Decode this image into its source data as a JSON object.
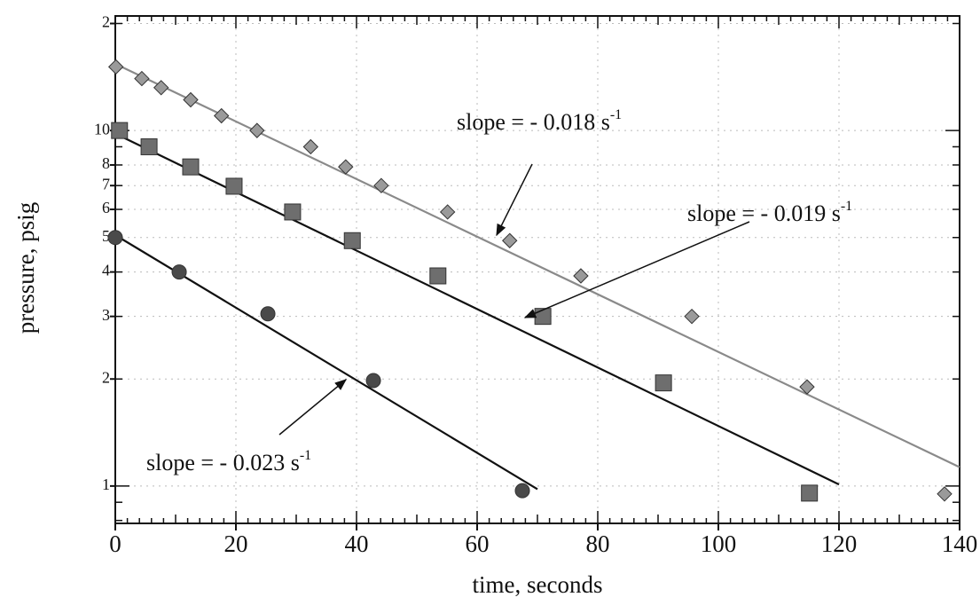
{
  "chart_data": {
    "type": "scatter",
    "x_label": "time, seconds",
    "y_label": "pressure, psig",
    "xlim": [
      0,
      140
    ],
    "xticks": [
      0,
      20,
      40,
      60,
      80,
      100,
      120,
      140
    ],
    "ylim": [
      0.785,
      21
    ],
    "yticks": [
      1,
      2,
      3,
      4,
      5,
      6,
      7,
      8,
      10,
      {
        "value": 20,
        "label": "2"
      }
    ],
    "y_scale": "log",
    "grid": true,
    "series": [
      {
        "color": "#9a9a9a",
        "marker": "diamond",
        "x": [
          0.1,
          4.4,
          7.6,
          12.5,
          17.6,
          23.5,
          32.4,
          38.2,
          44.1,
          55.1,
          65.4,
          77.2,
          95.6,
          114.7,
          137.5
        ],
        "values": [
          15.1,
          14.0,
          13.2,
          12.2,
          11.0,
          10.0,
          9.0,
          7.9,
          7.0,
          5.9,
          4.9,
          3.9,
          3.0,
          1.9,
          0.95
        ],
        "fit": {
          "color": "#8a8a8a",
          "x": [
            0,
            140
          ],
          "values": [
            15.4,
            1.13
          ]
        }
      },
      {
        "color": "#6e6e6e",
        "marker": "square",
        "x": [
          0.7,
          5.6,
          12.5,
          19.7,
          29.4,
          39.3,
          53.5,
          70.9,
          90.9,
          115.1
        ],
        "values": [
          10.0,
          9.0,
          7.9,
          6.97,
          5.9,
          4.9,
          3.9,
          3.0,
          1.95,
          0.955
        ],
        "fit": {
          "color": "#111111",
          "x": [
            0,
            120
          ],
          "values": [
            9.8,
            1.01
          ]
        }
      },
      {
        "color": "#4a4a4a",
        "marker": "circle",
        "x": [
          0,
          10.6,
          25.3,
          42.8,
          67.5
        ],
        "values": [
          5.0,
          4.0,
          3.05,
          1.98,
          0.97
        ],
        "fit": {
          "color": "#111111",
          "x": [
            0,
            70
          ],
          "values": [
            5.08,
            0.98
          ]
        }
      }
    ],
    "annotations": [
      {
        "text": "slope = - 0.018 s",
        "superscript": "-1"
      },
      {
        "text": "slope = - 0.019 s",
        "superscript": "-1"
      },
      {
        "text": "slope = - 0.023 s",
        "superscript": "-1"
      }
    ]
  }
}
